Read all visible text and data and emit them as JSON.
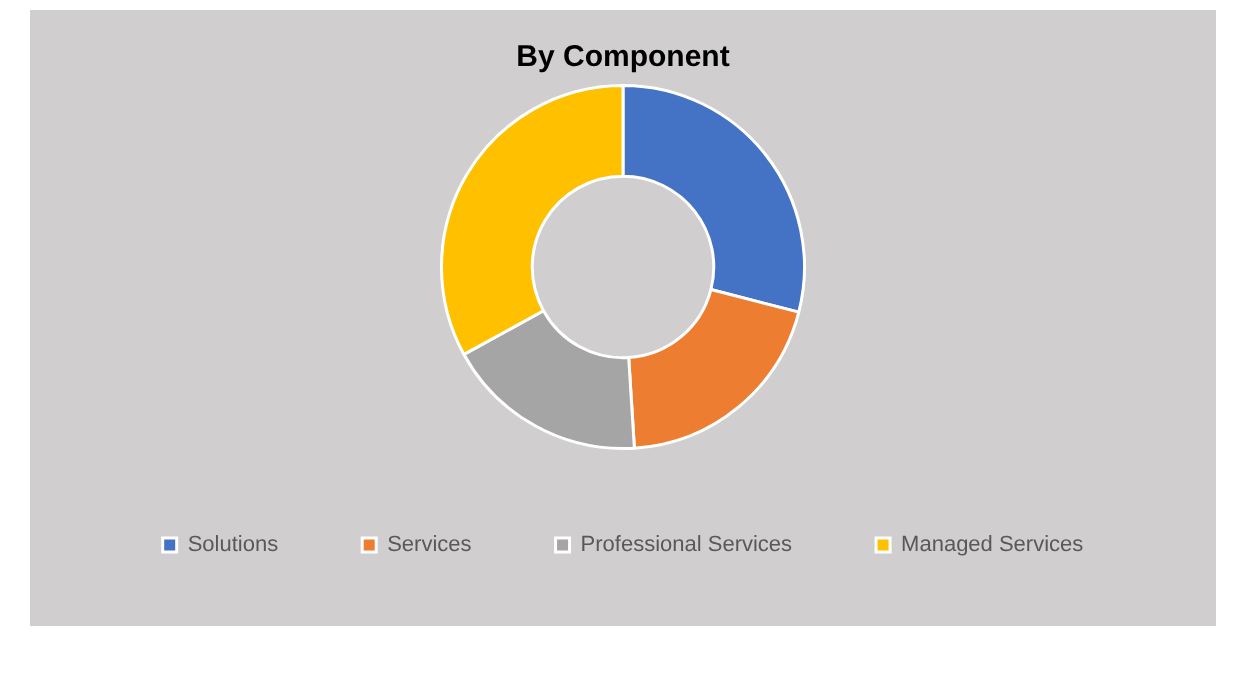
{
  "chart_data": {
    "type": "donut",
    "title": "By Component",
    "categories": [
      "Solutions",
      "Services",
      "Professional Services",
      "Managed Services"
    ],
    "values": [
      29,
      20,
      18,
      33
    ],
    "colors": [
      "#4472c4",
      "#ed7d31",
      "#a5a5a5",
      "#ffc000"
    ],
    "legend": "bottom"
  }
}
